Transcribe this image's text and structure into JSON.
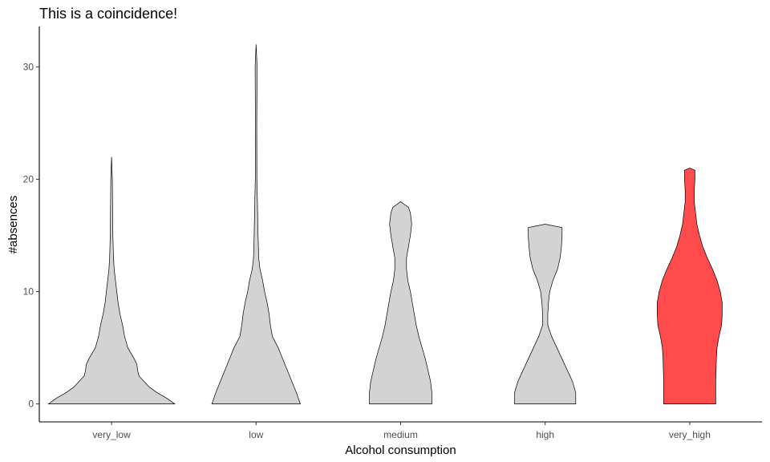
{
  "chart_data": {
    "type": "violin",
    "title": "This is a coincidence!",
    "xlabel": "Alcohol consumption",
    "ylabel": "#absences",
    "categories": [
      "very_low",
      "low",
      "medium",
      "high",
      "very_high"
    ],
    "yticks": [
      0,
      10,
      20,
      30
    ],
    "ylim": [
      -1.6,
      33.6
    ],
    "grid": false,
    "default_fill": "#d3d3d3",
    "highlight_fill": "#ff4b4b",
    "highlight_category": "very_high",
    "series": [
      {
        "category": "very_low",
        "max": 22,
        "profile": [
          [
            0,
            0.97
          ],
          [
            0.5,
            0.85
          ],
          [
            1,
            0.7
          ],
          [
            1.5,
            0.58
          ],
          [
            2.5,
            0.42
          ],
          [
            3,
            0.4
          ],
          [
            3.5,
            0.39
          ],
          [
            4,
            0.35
          ],
          [
            5,
            0.25
          ],
          [
            6,
            0.2
          ],
          [
            7,
            0.17
          ],
          [
            8,
            0.13
          ],
          [
            9,
            0.1
          ],
          [
            10,
            0.08
          ],
          [
            11,
            0.06
          ],
          [
            12,
            0.04
          ],
          [
            13,
            0.03
          ],
          [
            15,
            0.02
          ],
          [
            20,
            0.012
          ],
          [
            22,
            0.0
          ]
        ]
      },
      {
        "category": "low",
        "max": 32,
        "profile": [
          [
            0,
            0.68
          ],
          [
            1,
            0.62
          ],
          [
            2,
            0.55
          ],
          [
            3,
            0.48
          ],
          [
            4,
            0.41
          ],
          [
            5,
            0.34
          ],
          [
            6,
            0.25
          ],
          [
            7,
            0.22
          ],
          [
            8,
            0.2
          ],
          [
            9,
            0.17
          ],
          [
            10,
            0.13
          ],
          [
            11,
            0.1
          ],
          [
            12,
            0.06
          ],
          [
            13,
            0.04
          ],
          [
            15,
            0.03
          ],
          [
            18,
            0.02
          ],
          [
            20,
            0.012
          ],
          [
            25,
            0.01
          ],
          [
            30,
            0.015
          ],
          [
            32,
            0.0
          ]
        ]
      },
      {
        "category": "medium",
        "max": 18,
        "profile": [
          [
            0,
            0.48
          ],
          [
            1,
            0.48
          ],
          [
            2,
            0.46
          ],
          [
            3,
            0.42
          ],
          [
            4,
            0.38
          ],
          [
            5,
            0.33
          ],
          [
            6,
            0.28
          ],
          [
            7,
            0.24
          ],
          [
            8,
            0.21
          ],
          [
            9,
            0.18
          ],
          [
            10,
            0.15
          ],
          [
            11,
            0.11
          ],
          [
            12,
            0.09
          ],
          [
            13,
            0.09
          ],
          [
            14,
            0.12
          ],
          [
            15,
            0.15
          ],
          [
            16,
            0.17
          ],
          [
            17,
            0.15
          ],
          [
            17.5,
            0.12
          ],
          [
            18,
            0.0
          ]
        ]
      },
      {
        "category": "high",
        "max": 16,
        "profile": [
          [
            0,
            0.47
          ],
          [
            1,
            0.47
          ],
          [
            2,
            0.42
          ],
          [
            3,
            0.34
          ],
          [
            4,
            0.26
          ],
          [
            5,
            0.18
          ],
          [
            6,
            0.1
          ],
          [
            7,
            0.04
          ],
          [
            8,
            0.04
          ],
          [
            9,
            0.05
          ],
          [
            10,
            0.07
          ],
          [
            11,
            0.12
          ],
          [
            12,
            0.19
          ],
          [
            13,
            0.23
          ],
          [
            14,
            0.25
          ],
          [
            15,
            0.26
          ],
          [
            15.7,
            0.26
          ],
          [
            16,
            0.0
          ]
        ]
      },
      {
        "category": "very_high",
        "max": 21,
        "profile": [
          [
            0,
            0.4
          ],
          [
            2,
            0.4
          ],
          [
            4,
            0.41
          ],
          [
            5,
            0.42
          ],
          [
            6,
            0.45
          ],
          [
            7,
            0.49
          ],
          [
            8,
            0.5
          ],
          [
            9,
            0.5
          ],
          [
            10,
            0.47
          ],
          [
            11,
            0.42
          ],
          [
            12,
            0.35
          ],
          [
            13,
            0.27
          ],
          [
            14,
            0.2
          ],
          [
            15,
            0.15
          ],
          [
            16,
            0.11
          ],
          [
            17,
            0.09
          ],
          [
            18,
            0.07
          ],
          [
            19,
            0.07
          ],
          [
            20,
            0.08
          ],
          [
            20.8,
            0.08
          ],
          [
            21,
            0.0
          ]
        ]
      }
    ]
  }
}
